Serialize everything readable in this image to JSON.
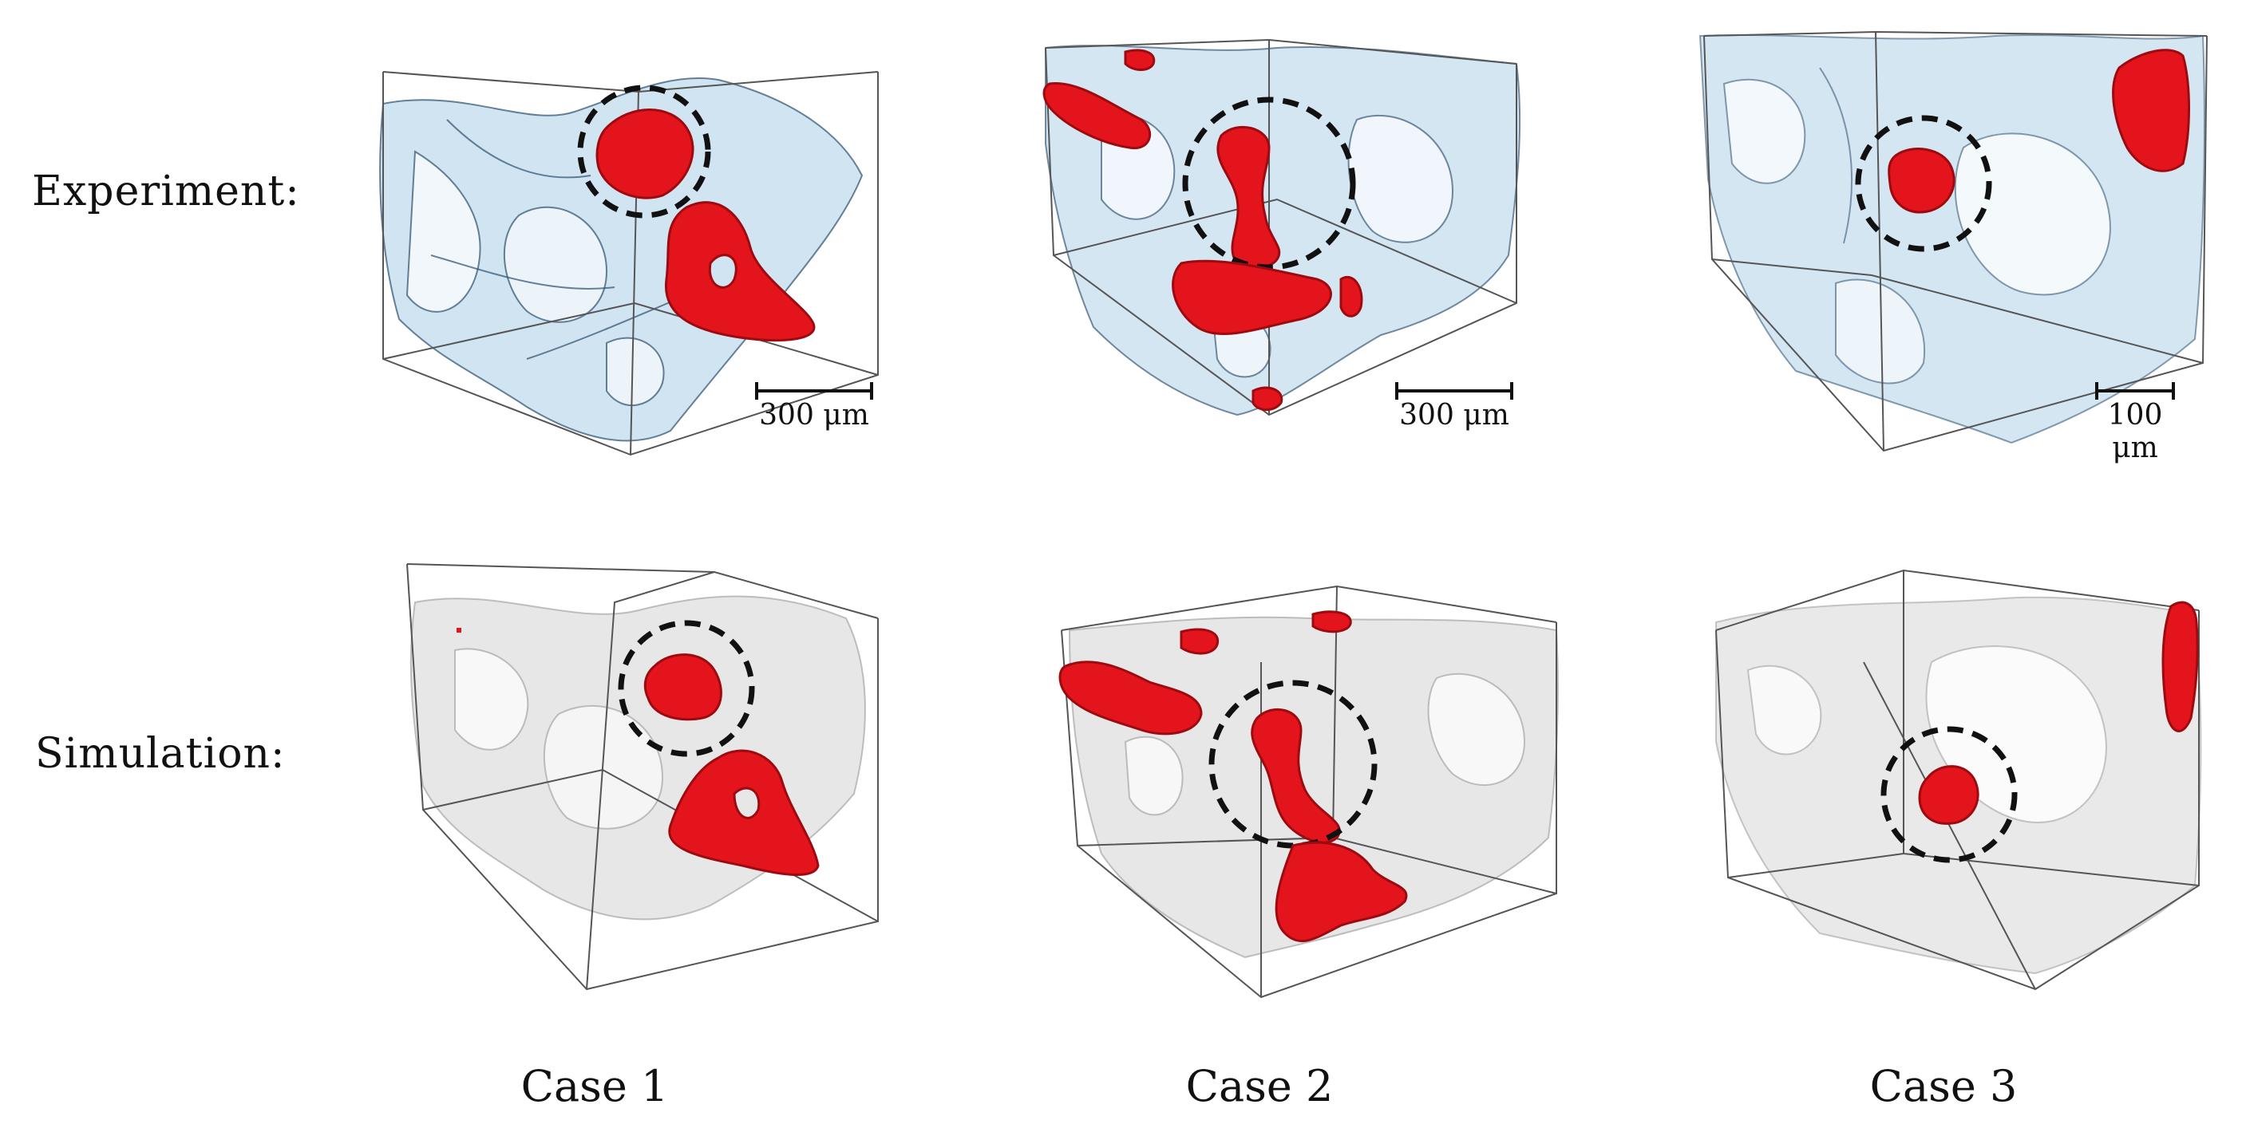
{
  "rows": {
    "experiment": "Experiment:",
    "simulation": "Simulation:"
  },
  "cases": [
    "Case 1",
    "Case 2",
    "Case 3"
  ],
  "scale_bars": {
    "case1": "300 μm",
    "case2": "300 μm",
    "case3": "100 μm"
  },
  "colors": {
    "ganglion": "#e3141c",
    "ganglion_dark": "#9d0a10",
    "experiment_tissue": "#a9cde6",
    "experiment_edge": "#2c4f6d",
    "simulation_tissue": "#cfcfcf",
    "box_edge": "#555555",
    "highlight_circle": "#111111"
  }
}
